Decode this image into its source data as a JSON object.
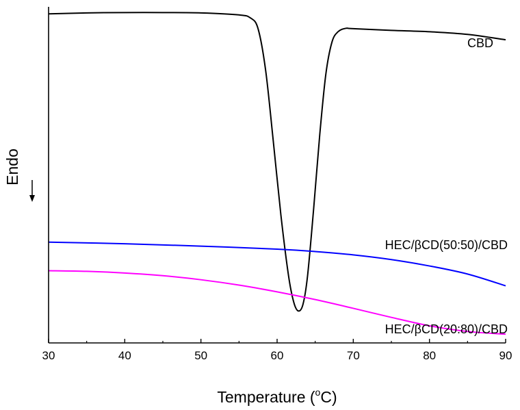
{
  "chart_data": {
    "type": "line",
    "xlabel": "Temperature (°C)",
    "xlabel_parts": {
      "main": "Temperature (",
      "superscript": "o",
      "unit": "C)"
    },
    "ylabel": "Endo",
    "y_direction_arrow": "down",
    "xlim": [
      30,
      90
    ],
    "ylim": [
      0,
      100
    ],
    "x_ticks": [
      30,
      40,
      50,
      60,
      70,
      80,
      90
    ],
    "y_tick_labels": false,
    "grid": false,
    "legend": "inline labels at right",
    "series": [
      {
        "name": "CBD",
        "color": "#000000",
        "x": [
          30,
          35,
          40,
          45,
          50,
          55,
          56.5,
          57.5,
          58.5,
          59.5,
          60.5,
          61.5,
          62.2,
          62.8,
          63.4,
          64.0,
          64.8,
          65.6,
          66.4,
          67.2,
          68.0,
          69.0,
          70,
          75,
          80,
          85,
          90
        ],
        "y": [
          97.9,
          98.2,
          98.3,
          98.3,
          98.2,
          97.6,
          96.7,
          93.5,
          81.0,
          60.0,
          38.0,
          20.0,
          12.0,
          9.5,
          11.5,
          20.0,
          40.0,
          62.0,
          80.0,
          89.5,
          92.6,
          93.6,
          93.5,
          93.0,
          92.6,
          91.8,
          90.2
        ]
      },
      {
        "name": "HEC/βCD(50:50)/CBD",
        "color": "#0000ff",
        "x": [
          30,
          40,
          50,
          60,
          65,
          70,
          75,
          80,
          85,
          90
        ],
        "y": [
          30.0,
          29.5,
          28.8,
          27.9,
          27.2,
          26.2,
          24.8,
          22.9,
          20.5,
          17.0
        ]
      },
      {
        "name": "HEC/βCD(20:80)/CBD",
        "color": "#ff00ff",
        "x": [
          30,
          35,
          40,
          45,
          50,
          55,
          60,
          65,
          70,
          75,
          80,
          85,
          90
        ],
        "y": [
          21.5,
          21.3,
          20.8,
          20.0,
          18.8,
          17.2,
          15.2,
          12.9,
          10.3,
          7.6,
          5.1,
          3.4,
          2.6
        ]
      }
    ]
  }
}
